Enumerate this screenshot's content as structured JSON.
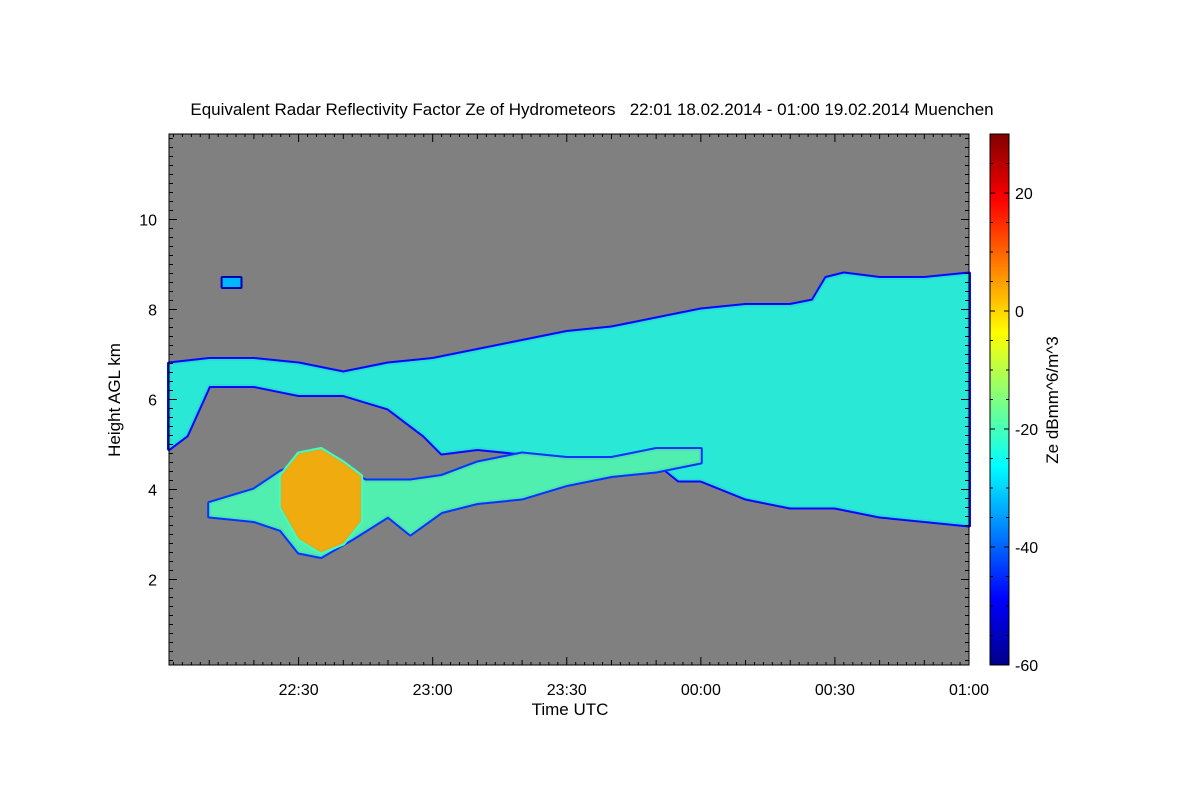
{
  "chart_data": {
    "type": "heatmap",
    "title": "Equivalent Radar Reflectivity Factor Ze of Hydrometeors   22:01 18.02.2014 - 01:00 19.02.2014 Muenchen",
    "xlabel": "Time UTC",
    "ylabel": "Height AGL km",
    "x_unit": "minutes since 22:00 UTC",
    "xlim": [
      1,
      180
    ],
    "ylim": [
      0.1,
      11.9
    ],
    "x_ticks": [
      {
        "value": 30,
        "label": "22:30"
      },
      {
        "value": 60,
        "label": "23:00"
      },
      {
        "value": 90,
        "label": "23:30"
      },
      {
        "value": 120,
        "label": "00:00"
      },
      {
        "value": 150,
        "label": "00:30"
      },
      {
        "value": 180,
        "label": "01:00"
      }
    ],
    "y_ticks": [
      {
        "value": 2,
        "label": "2"
      },
      {
        "value": 4,
        "label": "4"
      },
      {
        "value": 6,
        "label": "6"
      },
      {
        "value": 8,
        "label": "8"
      },
      {
        "value": 10,
        "label": "10"
      }
    ],
    "colorbar": {
      "label": "Ze dBmm^6/m^3",
      "range": [
        -60,
        30
      ],
      "ticks": [
        {
          "value": 20,
          "label": "20"
        },
        {
          "value": 0,
          "label": "0"
        },
        {
          "value": -20,
          "label": "-20"
        },
        {
          "value": -40,
          "label": "-40"
        },
        {
          "value": -60,
          "label": "-60"
        }
      ]
    },
    "colors": {
      "background": "#808080",
      "colormap": [
        "#00008b",
        "#0000ff",
        "#0080ff",
        "#00ffff",
        "#80ff80",
        "#ffff00",
        "#ff8000",
        "#ff0000",
        "#800000"
      ]
    },
    "features": [
      {
        "name": "upper-cloud-layer",
        "ze_dbz": -22,
        "top": [
          [
            1,
            6.8
          ],
          [
            10,
            6.9
          ],
          [
            20,
            6.9
          ],
          [
            30,
            6.8
          ],
          [
            40,
            6.6
          ],
          [
            50,
            6.8
          ],
          [
            60,
            6.9
          ],
          [
            70,
            7.1
          ],
          [
            80,
            7.3
          ],
          [
            90,
            7.5
          ],
          [
            100,
            7.6
          ],
          [
            110,
            7.8
          ],
          [
            120,
            8.0
          ],
          [
            130,
            8.1
          ],
          [
            140,
            8.1
          ],
          [
            145,
            8.2
          ],
          [
            148,
            8.7
          ],
          [
            152,
            8.8
          ],
          [
            160,
            8.7
          ],
          [
            170,
            8.7
          ],
          [
            180,
            8.8
          ]
        ],
        "base": [
          [
            1,
            4.9
          ],
          [
            5,
            5.2
          ],
          [
            10,
            6.3
          ],
          [
            20,
            6.3
          ],
          [
            30,
            6.1
          ],
          [
            40,
            6.1
          ],
          [
            50,
            5.8
          ],
          [
            58,
            5.2
          ],
          [
            62,
            4.8
          ],
          [
            70,
            4.9
          ],
          [
            80,
            4.8
          ],
          [
            90,
            4.6
          ],
          [
            100,
            4.6
          ],
          [
            110,
            4.6
          ],
          [
            115,
            4.2
          ],
          [
            120,
            4.2
          ],
          [
            130,
            3.8
          ],
          [
            140,
            3.6
          ],
          [
            150,
            3.6
          ],
          [
            160,
            3.4
          ],
          [
            170,
            3.3
          ],
          [
            180,
            3.2
          ]
        ]
      },
      {
        "name": "lower-cloud-layer",
        "ze_dbz": -18,
        "top": [
          [
            10,
            3.7
          ],
          [
            20,
            4.0
          ],
          [
            26,
            4.4
          ],
          [
            35,
            4.7
          ],
          [
            45,
            4.2
          ],
          [
            55,
            4.2
          ],
          [
            62,
            4.3
          ],
          [
            70,
            4.6
          ],
          [
            80,
            4.8
          ],
          [
            90,
            4.7
          ],
          [
            100,
            4.7
          ],
          [
            110,
            4.9
          ],
          [
            120,
            4.9
          ]
        ],
        "base": [
          [
            10,
            3.4
          ],
          [
            20,
            3.3
          ],
          [
            26,
            3.1
          ],
          [
            30,
            2.6
          ],
          [
            35,
            2.5
          ],
          [
            42,
            2.9
          ],
          [
            50,
            3.4
          ],
          [
            55,
            3.0
          ],
          [
            62,
            3.5
          ],
          [
            70,
            3.7
          ],
          [
            80,
            3.8
          ],
          [
            90,
            4.1
          ],
          [
            100,
            4.3
          ],
          [
            110,
            4.4
          ],
          [
            120,
            4.6
          ]
        ]
      },
      {
        "name": "high-reflectivity-cell",
        "ze_dbz": 5,
        "top": [
          [
            26,
            4.3
          ],
          [
            30,
            4.8
          ],
          [
            35,
            4.9
          ],
          [
            40,
            4.6
          ],
          [
            44,
            4.3
          ]
        ],
        "base": [
          [
            26,
            3.6
          ],
          [
            30,
            2.9
          ],
          [
            35,
            2.6
          ],
          [
            40,
            2.8
          ],
          [
            44,
            3.3
          ]
        ]
      },
      {
        "name": "small-echo",
        "ze_dbz": -30,
        "top": [
          [
            13,
            8.7
          ],
          [
            17,
            8.7
          ]
        ],
        "base": [
          [
            13,
            8.5
          ],
          [
            17,
            8.5
          ]
        ]
      }
    ]
  }
}
